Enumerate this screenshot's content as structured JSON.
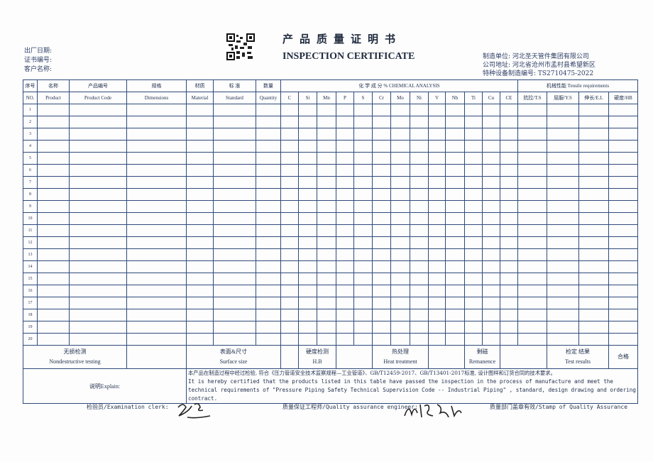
{
  "header": {
    "title_cn": "产品质量证明书",
    "title_en": "INSPECTION CERTIFICATE",
    "left_fields": [
      "出厂日期:",
      "证书编号:",
      "客户名称:"
    ],
    "right_fields": [
      "制造单位: 河北圣天管件集团有限公司",
      "公司地址: 河北省沧州市孟村县希望新区",
      "特种设备制造编号: TS2710475-2022"
    ]
  },
  "table": {
    "cols_cn": [
      "序号",
      "名称",
      "产品编号",
      "规格",
      "材质",
      "标 准",
      "数量"
    ],
    "cols_en": [
      "NO.",
      "Product",
      "Product Code",
      "Dimensions",
      "Material",
      "Standard",
      "Quantity"
    ],
    "chem_title": "化  学  成  分 %    CHEMICAL ANALYSIS",
    "chem": [
      "C",
      "Si",
      "Mn",
      "P",
      "S",
      "Cr",
      "Mo",
      "Ni",
      "V",
      "Nb",
      "Ti",
      "Cu",
      "CE"
    ],
    "mech_title": "机械性能  Tensile requirements",
    "mech": [
      "抗拉/T.S",
      "屈服/Y.S",
      "伸长/E.L",
      "硬度/HB"
    ],
    "rows": [
      "1",
      "2",
      "3",
      "4",
      "5",
      "6",
      "7",
      "8",
      "9",
      "10",
      "11",
      "12",
      "13",
      "14",
      "15",
      "16",
      "17",
      "18",
      "19",
      "20"
    ]
  },
  "footer": {
    "ndt_cn": "无损检测",
    "ndt_en": "Nondestructive testing",
    "surface_cn": "表面&尺寸",
    "surface_en": "Surface size",
    "hb_cn": "硬度检测",
    "hb_en": "H.B",
    "heat_cn": "热处理",
    "heat_en": "Heat treatment",
    "rem_cn": "剩磁",
    "rem_en": "Remanence",
    "result_cn": "检定 结果",
    "result_en": "Test results",
    "result_value": "合格",
    "explain_label": "说明Explain:",
    "explain_cn": "本产品在制造过程中经过检验, 符合《压力管道安全技术监察规程—工业管道》、GB/T12459-2017、GB/T13401-2017标准, 设计图样和订货合同的技术要求。",
    "explain_en": "It is hereby certified that the products listed in this table have passed the inspection in the process of manufacture and meet the technical requirements of \"Pressure Piping Safety Technical Supervision Code -- Industrial Piping\" , standard, design drawing and ordering contract.",
    "clerk": "检验员/Examination clerk:",
    "engineer": "质量保证工程师/Quality assurance engineer:",
    "stamp": "质量部门盖章有效/Stamp of Quality Assurance"
  }
}
